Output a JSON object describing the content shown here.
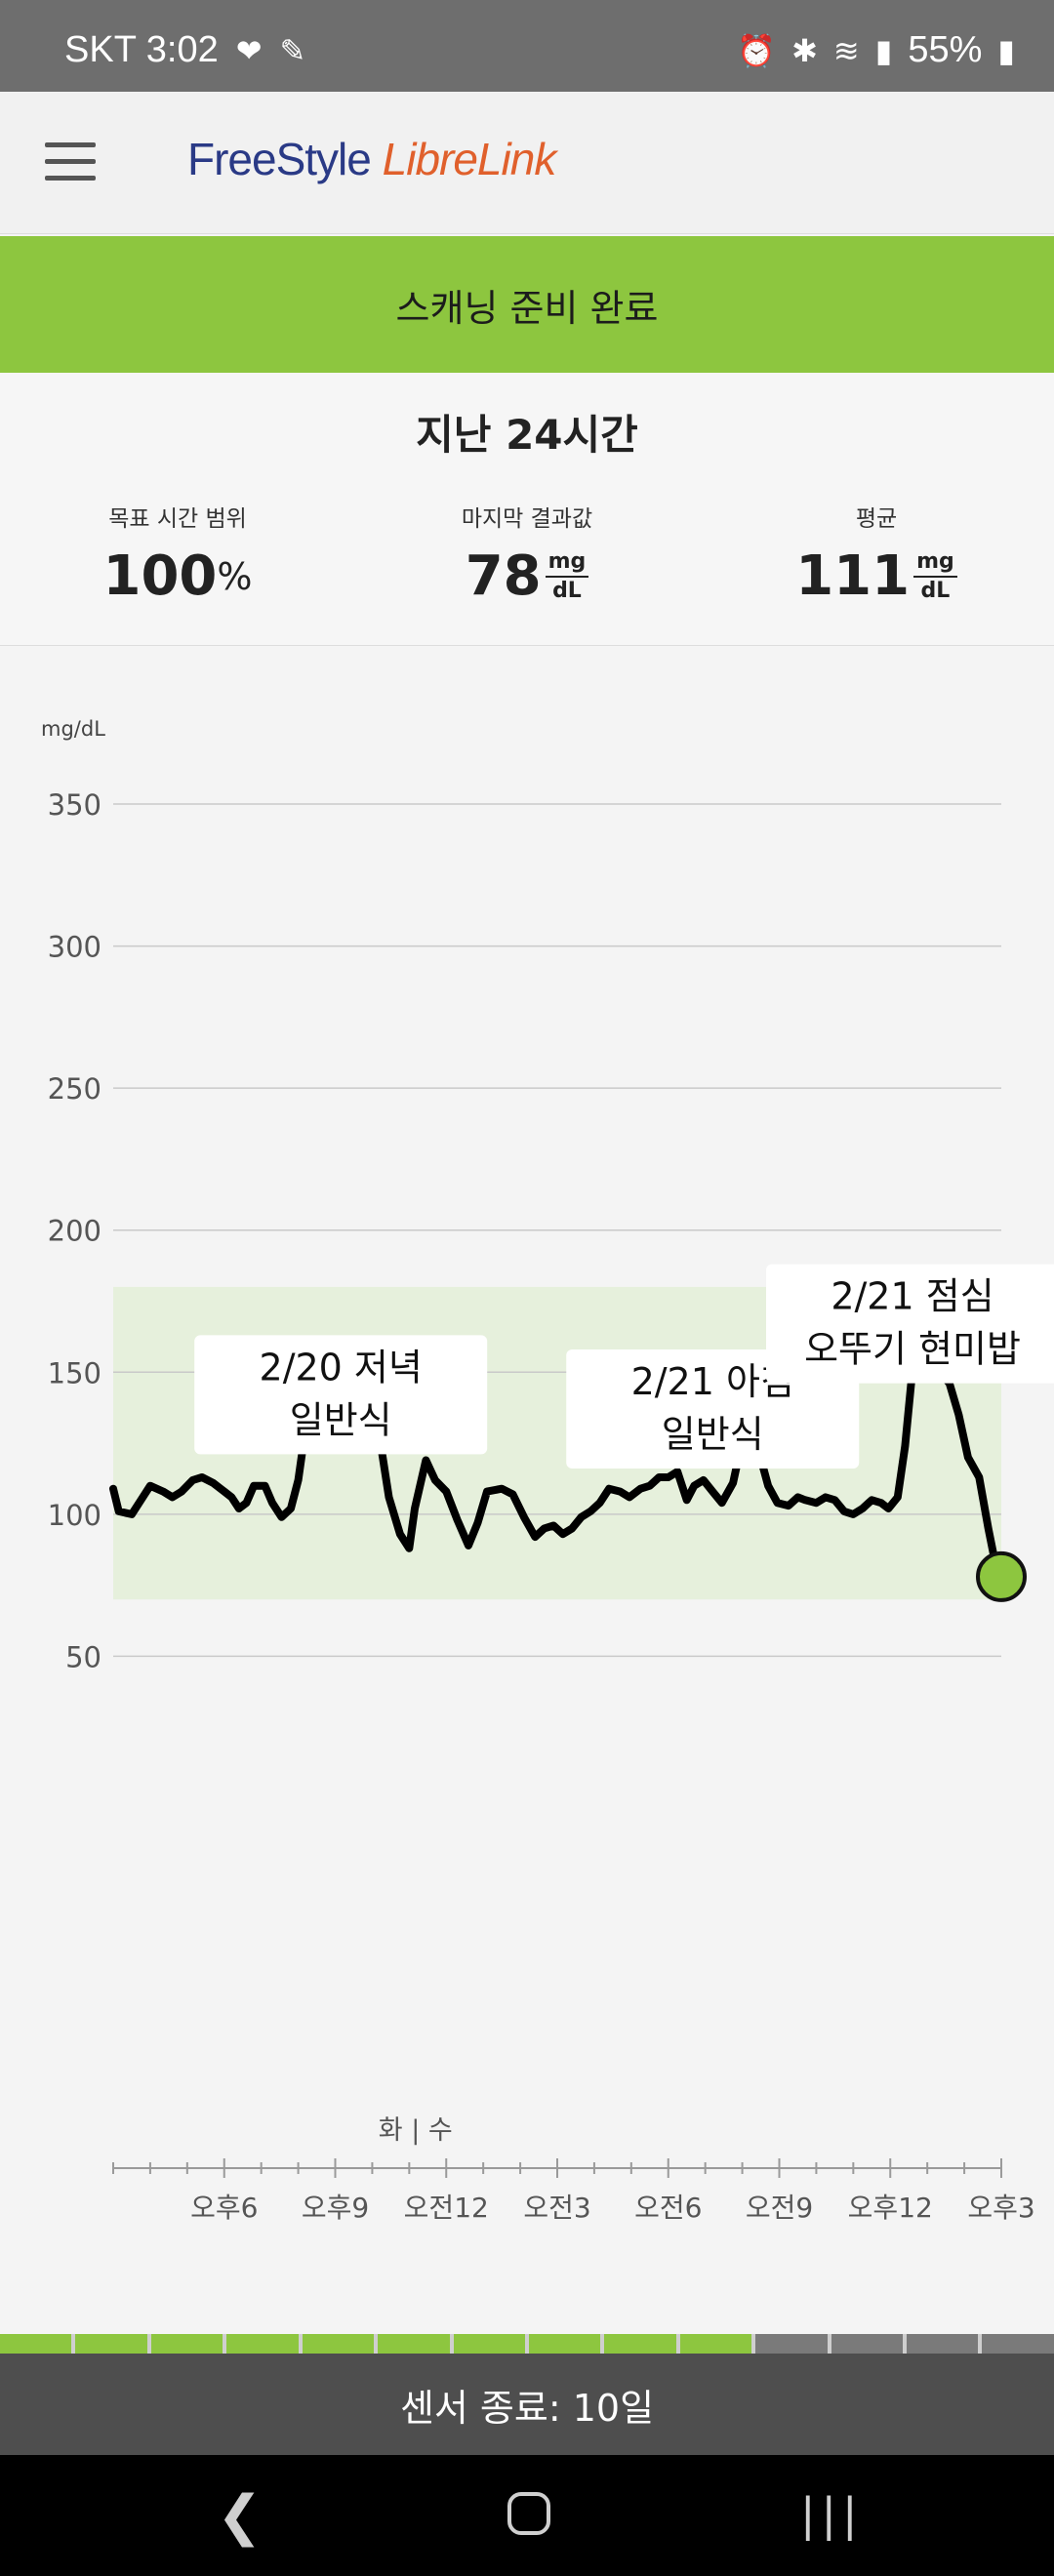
{
  "status_bar": {
    "carrier_time": "SKT 3:02",
    "battery": "55%"
  },
  "header": {
    "logo_part1": "FreeStyle",
    "logo_part2": "LibreLink"
  },
  "banner": {
    "text": "스캐닝 준비 완료"
  },
  "summary": {
    "title": "지난 24시간",
    "target_label": "목표 시간 범위",
    "target_value": "100",
    "target_unit": "%",
    "last_label": "마지막 결과값",
    "last_value": "78",
    "avg_label": "평균",
    "avg_value": "111",
    "unit_top": "mg",
    "unit_bottom": "dL"
  },
  "sensor": {
    "text": "센서 종료: 10일",
    "segments_total": 14,
    "segments_filled": 10
  },
  "chart_data": {
    "type": "line",
    "ylabel": "mg/dL",
    "ylim": [
      0,
      350
    ],
    "yticks": [
      50,
      100,
      150,
      200,
      250,
      300,
      350
    ],
    "target_range": [
      70,
      180
    ],
    "x_range": [
      0,
      24
    ],
    "day_marker_label": "화 | 수",
    "day_marker_x": 8.17,
    "x_ticks": [
      {
        "x": 3,
        "label": "오후6"
      },
      {
        "x": 6,
        "label": "오후9"
      },
      {
        "x": 9,
        "label": "오전12"
      },
      {
        "x": 12,
        "label": "오전3"
      },
      {
        "x": 15,
        "label": "오전6"
      },
      {
        "x": 18,
        "label": "오전9"
      },
      {
        "x": 21,
        "label": "오후12"
      },
      {
        "x": 24,
        "label": "오후3"
      }
    ],
    "series": [
      {
        "values": [
          [
            0.0,
            109
          ],
          [
            0.15,
            101
          ],
          [
            0.5,
            100
          ],
          [
            0.85,
            107
          ],
          [
            1.0,
            110
          ],
          [
            1.35,
            108
          ],
          [
            1.6,
            106
          ],
          [
            1.85,
            108
          ],
          [
            2.15,
            112
          ],
          [
            2.4,
            113
          ],
          [
            2.7,
            111
          ],
          [
            3.0,
            108
          ],
          [
            3.2,
            106
          ],
          [
            3.4,
            102
          ],
          [
            3.6,
            104
          ],
          [
            3.8,
            110
          ],
          [
            4.1,
            110
          ],
          [
            4.3,
            104
          ],
          [
            4.55,
            99
          ],
          [
            4.8,
            102
          ],
          [
            5.0,
            112
          ],
          [
            5.25,
            135
          ],
          [
            5.5,
            140
          ],
          [
            5.75,
            133
          ],
          [
            6.0,
            130
          ],
          [
            6.3,
            125
          ],
          [
            6.5,
            123
          ],
          [
            6.75,
            127
          ],
          [
            6.95,
            134
          ],
          [
            7.2,
            127
          ],
          [
            7.45,
            106
          ],
          [
            7.75,
            93
          ],
          [
            8.0,
            88
          ],
          [
            8.15,
            102
          ],
          [
            8.45,
            119
          ],
          [
            8.7,
            112
          ],
          [
            9.0,
            108
          ],
          [
            9.3,
            98
          ],
          [
            9.6,
            89
          ],
          [
            9.85,
            97
          ],
          [
            10.1,
            108
          ],
          [
            10.5,
            109
          ],
          [
            10.8,
            107
          ],
          [
            11.1,
            99
          ],
          [
            11.4,
            92
          ],
          [
            11.65,
            95
          ],
          [
            11.9,
            96
          ],
          [
            12.15,
            93
          ],
          [
            12.4,
            95
          ],
          [
            12.65,
            99
          ],
          [
            12.9,
            101
          ],
          [
            13.15,
            104
          ],
          [
            13.4,
            109
          ],
          [
            13.7,
            108
          ],
          [
            13.95,
            106
          ],
          [
            14.25,
            109
          ],
          [
            14.5,
            110
          ],
          [
            14.75,
            113
          ],
          [
            15.0,
            113
          ],
          [
            15.25,
            115
          ],
          [
            15.5,
            105
          ],
          [
            15.7,
            110
          ],
          [
            15.95,
            112
          ],
          [
            16.2,
            108
          ],
          [
            16.45,
            104
          ],
          [
            16.75,
            111
          ],
          [
            17.0,
            126
          ],
          [
            17.2,
            138
          ],
          [
            17.45,
            122
          ],
          [
            17.7,
            110
          ],
          [
            17.95,
            104
          ],
          [
            18.25,
            103
          ],
          [
            18.5,
            106
          ],
          [
            18.7,
            105
          ],
          [
            19.0,
            104
          ],
          [
            19.25,
            106
          ],
          [
            19.5,
            105
          ],
          [
            19.75,
            101
          ],
          [
            20.0,
            100
          ],
          [
            20.25,
            102
          ],
          [
            20.5,
            105
          ],
          [
            20.75,
            104
          ],
          [
            20.95,
            102
          ],
          [
            21.2,
            106
          ],
          [
            21.4,
            124
          ],
          [
            21.6,
            151
          ],
          [
            21.85,
            162
          ],
          [
            22.1,
            157
          ],
          [
            22.35,
            150
          ],
          [
            22.6,
            146
          ],
          [
            22.85,
            135
          ],
          [
            23.1,
            120
          ],
          [
            23.4,
            113
          ],
          [
            23.65,
            95
          ],
          [
            23.85,
            82
          ],
          [
            24.0,
            78
          ]
        ]
      }
    ],
    "last_point": {
      "x": 24.0,
      "y": 78,
      "color": "#8dc63f"
    },
    "annotations": [
      {
        "lines": [
          "2/20 저녁",
          "일반식"
        ],
        "x": 6.15,
        "y": 163
      },
      {
        "lines": [
          "2/21 아침",
          "일반식"
        ],
        "x": 16.2,
        "y": 158
      },
      {
        "lines": [
          "2/21 점심",
          "오뚜기 현미밥"
        ],
        "x": 21.6,
        "y": 188
      }
    ]
  },
  "colors": {
    "banner": "#8dc63f",
    "target_band": "#e6f0dc",
    "line": "#000000",
    "status_bar": "#6e6e6e",
    "sensor_bar": "#4e4e4e",
    "seg_filled": "#8dc63f",
    "seg_empty": "#7a7a7a"
  }
}
